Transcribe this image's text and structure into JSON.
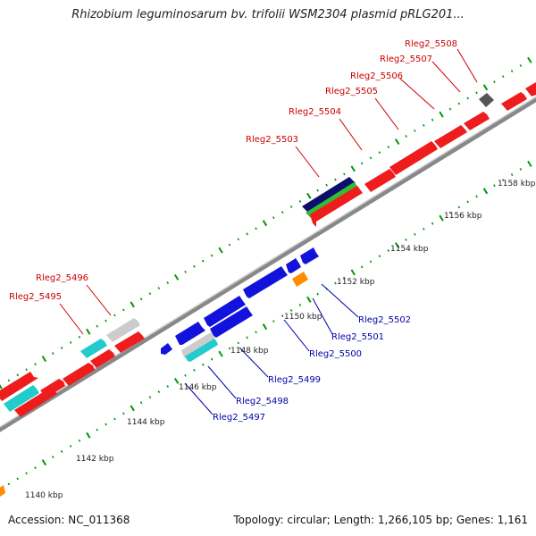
{
  "title": "Rhizobium leguminosarum bv. trifolii WSM2304 plasmid pRLG201...",
  "footer": {
    "accession": "Accession: NC_011368",
    "summary": "Topology: circular; Length: 1,266,105 bp; Genes: 1,161"
  },
  "colors": {
    "forward_label": "#cc0000",
    "reverse_label": "#0000aa",
    "red": "#ee1c1c",
    "blue": "#1212dd",
    "navy": "#0d0d6e",
    "green": "#33bb33",
    "cyan": "#22cccc",
    "grey": "#cccccc",
    "dark_grey": "#555555",
    "orange": "#ff8c00",
    "backbone": "#999999",
    "tick": "#009900"
  },
  "kbp_labels": [
    "1140 kbp",
    "1142 kbp",
    "1144 kbp",
    "1146 kbp",
    "1148 kbp",
    "1150 kbp",
    "1152 kbp",
    "1154 kbp",
    "1156 kbp",
    "1158 kbp"
  ],
  "forward_gene_labels": [
    "Rleg2_5495",
    "Rleg2_5496",
    "Rleg2_5503",
    "Rleg2_5504",
    "Rleg2_5505",
    "Rleg2_5506",
    "Rleg2_5507",
    "Rleg2_5508"
  ],
  "reverse_gene_labels": [
    "Rleg2_5497",
    "Rleg2_5498",
    "Rleg2_5499",
    "Rleg2_5500",
    "Rleg2_5501",
    "Rleg2_5502"
  ]
}
